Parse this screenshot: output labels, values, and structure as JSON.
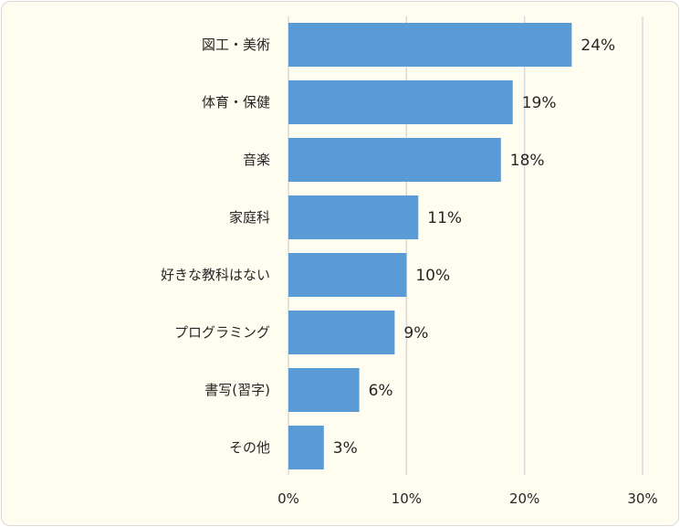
{
  "chart_data": {
    "type": "bar",
    "orientation": "horizontal",
    "categories": [
      "図工・美術",
      "体育・保健",
      "音楽",
      "家庭科",
      "好きな教科はない",
      "プログラミング",
      "書写(習字)",
      "その他"
    ],
    "values": [
      24,
      19,
      18,
      11,
      10,
      9,
      6,
      3
    ],
    "data_labels": [
      "24%",
      "19%",
      "18%",
      "11%",
      "10%",
      "9%",
      "6%",
      "3%"
    ],
    "x_ticks": [
      "0%",
      "10%",
      "20%",
      "30%"
    ],
    "xlim": [
      0,
      30
    ],
    "grid": true,
    "legend": "none",
    "title": "",
    "xlabel": "",
    "ylabel": "",
    "colors": {
      "bar": "#5b9bd5",
      "grid": "#d9d9d9",
      "background": "#fffdf0"
    }
  }
}
